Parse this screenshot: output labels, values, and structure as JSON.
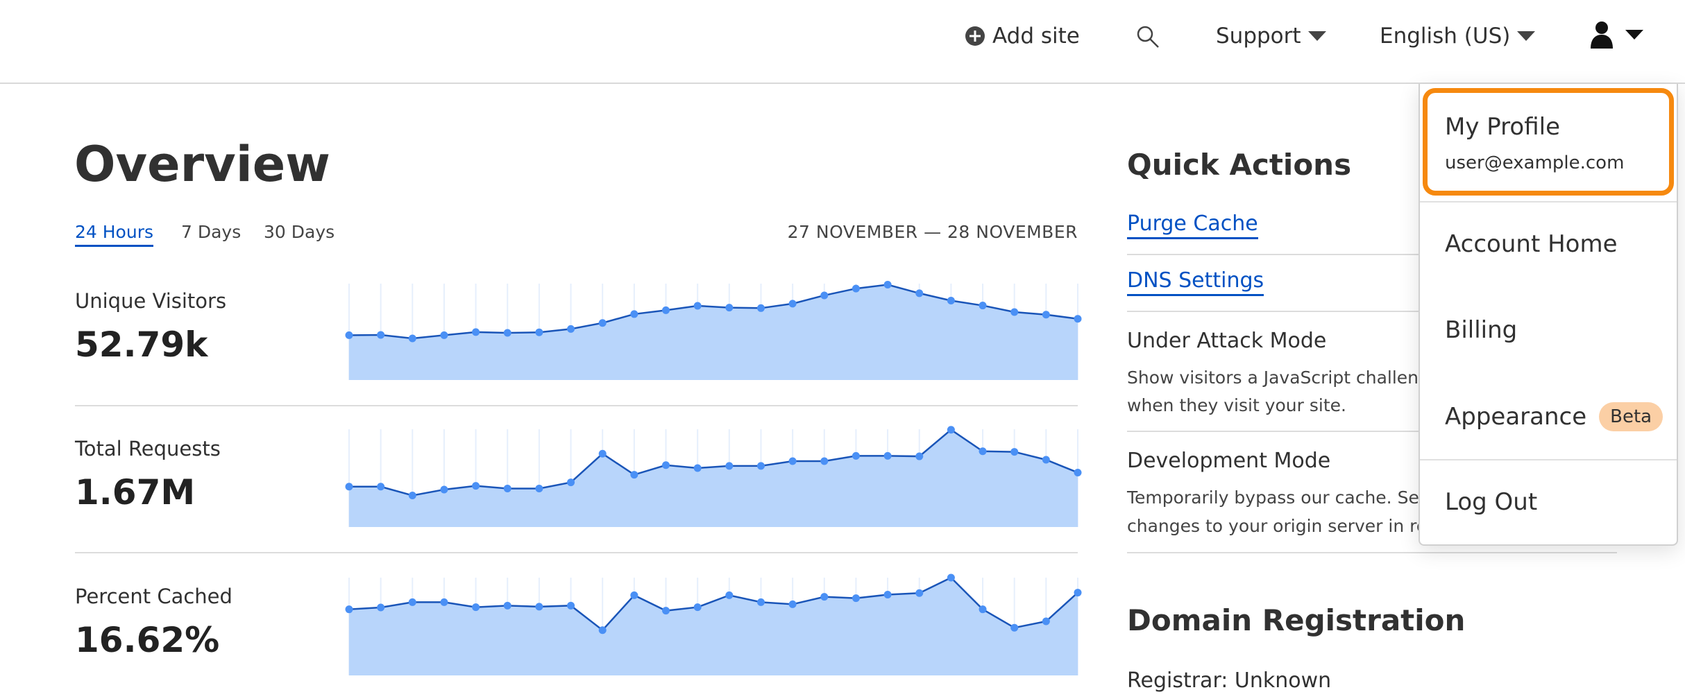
{
  "header": {
    "add_site": "Add site",
    "support": "Support",
    "language": "English (US)",
    "icons": [
      "plus-circle-icon",
      "search-icon",
      "user-icon",
      "caret-down-icon"
    ]
  },
  "overview": {
    "title": "Overview",
    "tabs": [
      "24 Hours",
      "7 Days",
      "30 Days"
    ],
    "active_tab": "24 Hours",
    "date_range": "27 NOVEMBER — 28 NOVEMBER",
    "metrics": [
      {
        "label": "Unique Visitors",
        "value": "52.79k"
      },
      {
        "label": "Total Requests",
        "value": "1.67M"
      },
      {
        "label": "Percent Cached",
        "value": "16.62%"
      }
    ]
  },
  "chart_data": [
    {
      "type": "area",
      "series": [
        {
          "values": [
            46.5,
            46.8,
            43.2,
            46.5,
            49.7,
            48.9,
            49.5,
            53,
            59.2,
            68.4,
            72.4,
            77,
            75.1,
            74.6,
            79.2,
            87.8,
            94.9,
            98.9,
            90,
            82.4,
            77.3,
            70.5,
            67.8,
            63.5
          ]
        }
      ],
      "ylim": [
        0,
        100
      ],
      "grid": "vertical",
      "color": "#4a90f5",
      "fill": "#b8d5fb",
      "line": "#1a55b8"
    },
    {
      "type": "area",
      "series": [
        {
          "values": [
            41.3,
            41.3,
            32.3,
            38.3,
            42.1,
            39.4,
            39.4,
            45.7,
            75,
            53.5,
            63.3,
            60.3,
            62.5,
            62.5,
            67.4,
            67.4,
            72.8,
            72.8,
            72.3,
            99.5,
            77.5,
            76.9,
            68.8,
            55.7
          ]
        }
      ],
      "ylim": [
        0,
        100
      ],
      "grid": "vertical",
      "color": "#4a90f5",
      "fill": "#b8d5fb",
      "line": "#1a55b8"
    },
    {
      "type": "area",
      "series": [
        {
          "values": [
            67.6,
            69.5,
            74.9,
            74.9,
            69.8,
            71.4,
            70.3,
            71.4,
            46.3,
            82,
            66.2,
            69.8,
            82,
            74.9,
            72.8,
            80.4,
            79,
            82.6,
            84.2,
            100,
            67.6,
            48.8,
            55.3,
            84.7
          ]
        }
      ],
      "ylim": [
        0,
        100
      ],
      "grid": "vertical",
      "color": "#4a90f5",
      "fill": "#b8d5fb",
      "line": "#1a55b8"
    }
  ],
  "quick_actions": {
    "title": "Quick Actions",
    "links": [
      "Purge Cache",
      "DNS Settings"
    ],
    "under_attack": {
      "title": "Under Attack Mode",
      "desc1": "Show visitors a JavaScript challen",
      "desc2": "when they visit your site."
    },
    "dev_mode": {
      "title": "Development Mode",
      "desc1": "Temporarily bypass our cache. Se",
      "desc2": "changes to your origin server in re"
    }
  },
  "domain_registration": {
    "title": "Domain Registration",
    "registrar": "Registrar: Unknown"
  },
  "user_menu": {
    "profile": "My Profile",
    "email": "user@example.com",
    "account_home": "Account Home",
    "billing": "Billing",
    "appearance": "Appearance",
    "beta": "Beta",
    "log_out": "Log Out",
    "highlight_color": "#f6890f",
    "badge_color": "#fbcfa5"
  }
}
